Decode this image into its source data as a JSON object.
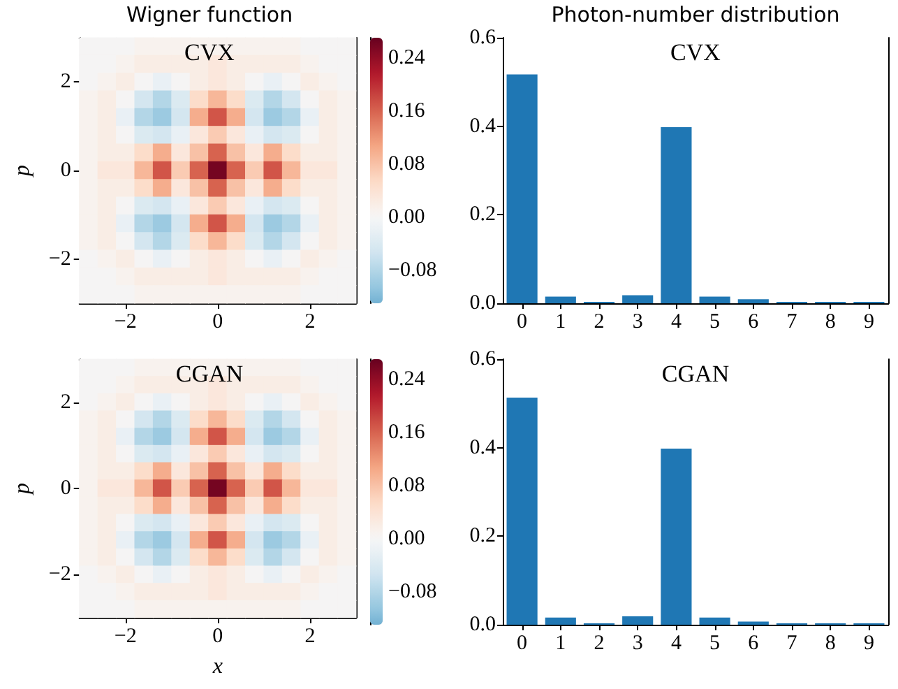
{
  "chart_data": [
    {
      "type": "heatmap",
      "title": "Wigner function",
      "ylabel": "p",
      "annotations": [
        "CVX"
      ],
      "categories": [
        null,
        null,
        "−2",
        null,
        null,
        null,
        null,
        "0",
        null,
        null,
        null,
        null,
        "2",
        null,
        null
      ],
      "y_categories": [
        null,
        null,
        "2",
        null,
        null,
        null,
        null,
        "0",
        null,
        null,
        null,
        null,
        "−2",
        null,
        null
      ],
      "clim": [
        -0.13,
        0.27
      ],
      "cticks": [
        {
          "value": -0.08,
          "label": "−0.08"
        },
        {
          "value": 0,
          "label": "0.00"
        },
        {
          "value": 0.08,
          "label": "0.08"
        },
        {
          "value": 0.16,
          "label": "0.16"
        },
        {
          "value": 0.24,
          "label": "0.24"
        }
      ],
      "cells": [
        [
          0,
          0,
          0,
          0.01,
          0.01,
          0.01,
          0.01,
          0.01,
          0.01,
          0.01,
          0.01,
          0.01,
          0,
          0,
          0
        ],
        [
          0,
          0,
          0.01,
          0.02,
          0.02,
          0.02,
          0.02,
          0.03,
          0.02,
          0.02,
          0.02,
          0.02,
          0.01,
          0,
          0
        ],
        [
          0,
          0.01,
          0.02,
          0,
          -0.02,
          0,
          0.02,
          0.03,
          0.02,
          0,
          -0.02,
          0,
          0.02,
          0.01,
          0
        ],
        [
          0.01,
          0.02,
          0,
          -0.05,
          -0.08,
          -0.04,
          0.05,
          0.09,
          0.05,
          -0.04,
          -0.08,
          -0.05,
          0,
          0.02,
          0.01
        ],
        [
          0.01,
          0.02,
          -0.02,
          -0.08,
          -0.1,
          -0.05,
          0.1,
          0.17,
          0.1,
          -0.05,
          -0.1,
          -0.08,
          -0.02,
          0.02,
          0.01
        ],
        [
          0.01,
          0.02,
          0,
          -0.04,
          -0.05,
          -0.02,
          0.03,
          0.07,
          0.03,
          -0.02,
          -0.05,
          -0.04,
          0,
          0.02,
          0.01
        ],
        [
          0.01,
          0.02,
          0.02,
          0.05,
          0.1,
          0.03,
          0.08,
          0.16,
          0.08,
          0.03,
          0.1,
          0.05,
          0.02,
          0.02,
          0.01
        ],
        [
          0.01,
          0.03,
          0.03,
          0.09,
          0.17,
          0.07,
          0.16,
          0.26,
          0.16,
          0.07,
          0.17,
          0.09,
          0.03,
          0.03,
          0.01
        ],
        [
          0.01,
          0.02,
          0.02,
          0.05,
          0.1,
          0.03,
          0.08,
          0.16,
          0.08,
          0.03,
          0.1,
          0.05,
          0.02,
          0.02,
          0.01
        ],
        [
          0.01,
          0.02,
          0,
          -0.04,
          -0.05,
          -0.02,
          0.03,
          0.07,
          0.03,
          -0.02,
          -0.05,
          -0.04,
          0,
          0.02,
          0.01
        ],
        [
          0.01,
          0.02,
          -0.02,
          -0.08,
          -0.1,
          -0.05,
          0.1,
          0.17,
          0.1,
          -0.05,
          -0.1,
          -0.08,
          -0.02,
          0.02,
          0.01
        ],
        [
          0.01,
          0.02,
          0,
          -0.05,
          -0.08,
          -0.04,
          0.05,
          0.09,
          0.05,
          -0.04,
          -0.08,
          -0.05,
          0,
          0.02,
          0.01
        ],
        [
          0,
          0.01,
          0.02,
          0,
          -0.02,
          0,
          0.02,
          0.03,
          0.02,
          0,
          -0.02,
          0,
          0.02,
          0.01,
          0
        ],
        [
          0,
          0,
          0.01,
          0.02,
          0.02,
          0.02,
          0.02,
          0.03,
          0.02,
          0.02,
          0.02,
          0.02,
          0.01,
          0,
          0
        ],
        [
          0,
          0,
          0,
          0.01,
          0.01,
          0.01,
          0.01,
          0.01,
          0.01,
          0.01,
          0.01,
          0.01,
          0,
          0,
          0
        ]
      ]
    },
    {
      "type": "bar",
      "title": "Photon-number distribution",
      "annotations": [
        "CVX"
      ],
      "categories": [
        "0",
        "1",
        "2",
        "3",
        "4",
        "5",
        "6",
        "7",
        "8",
        "9"
      ],
      "values": [
        0.517,
        0.015,
        0.003,
        0.018,
        0.398,
        0.015,
        0.009,
        0.003,
        0.003,
        0.003
      ],
      "color": "#1f77b4",
      "ylim": [
        0,
        0.6
      ],
      "yticks": [
        {
          "value": 0,
          "label": "0.0"
        },
        {
          "value": 0.2,
          "label": "0.2"
        },
        {
          "value": 0.4,
          "label": "0.4"
        },
        {
          "value": 0.6,
          "label": "0.6"
        }
      ]
    },
    {
      "type": "heatmap",
      "xlabel": "x",
      "ylabel": "p",
      "annotations": [
        "CGAN"
      ],
      "categories": [
        null,
        null,
        "−2",
        null,
        null,
        null,
        null,
        "0",
        null,
        null,
        null,
        null,
        "2",
        null,
        null
      ],
      "y_categories": [
        null,
        null,
        "2",
        null,
        null,
        null,
        null,
        "0",
        null,
        null,
        null,
        null,
        "−2",
        null,
        null
      ],
      "clim": [
        -0.13,
        0.27
      ],
      "cticks": [
        {
          "value": -0.08,
          "label": "−0.08"
        },
        {
          "value": 0,
          "label": "0.00"
        },
        {
          "value": 0.08,
          "label": "0.08"
        },
        {
          "value": 0.16,
          "label": "0.16"
        },
        {
          "value": 0.24,
          "label": "0.24"
        }
      ],
      "cells": [
        [
          0,
          0,
          0,
          0.01,
          0.01,
          0.01,
          0.01,
          0.01,
          0.01,
          0.01,
          0.01,
          0.01,
          0,
          0,
          0
        ],
        [
          0,
          0,
          0.01,
          0.02,
          0.02,
          0.02,
          0.02,
          0.03,
          0.02,
          0.02,
          0.02,
          0.02,
          0.01,
          0,
          0
        ],
        [
          0,
          0.01,
          0.02,
          0,
          -0.02,
          0,
          0.02,
          0.03,
          0.02,
          0,
          -0.02,
          0,
          0.02,
          0.01,
          0
        ],
        [
          0.01,
          0.02,
          0,
          -0.05,
          -0.08,
          -0.04,
          0.05,
          0.09,
          0.05,
          -0.04,
          -0.08,
          -0.05,
          0,
          0.02,
          0.01
        ],
        [
          0.01,
          0.02,
          -0.02,
          -0.08,
          -0.1,
          -0.05,
          0.1,
          0.17,
          0.1,
          -0.05,
          -0.1,
          -0.08,
          -0.02,
          0.02,
          0.01
        ],
        [
          0.01,
          0.02,
          0,
          -0.04,
          -0.05,
          -0.02,
          0.03,
          0.07,
          0.03,
          -0.02,
          -0.05,
          -0.04,
          0,
          0.02,
          0.01
        ],
        [
          0.01,
          0.02,
          0.02,
          0.05,
          0.1,
          0.03,
          0.08,
          0.16,
          0.08,
          0.03,
          0.1,
          0.05,
          0.02,
          0.02,
          0.01
        ],
        [
          0.01,
          0.03,
          0.03,
          0.09,
          0.17,
          0.07,
          0.16,
          0.26,
          0.16,
          0.07,
          0.17,
          0.09,
          0.03,
          0.03,
          0.01
        ],
        [
          0.01,
          0.02,
          0.02,
          0.05,
          0.1,
          0.03,
          0.08,
          0.16,
          0.08,
          0.03,
          0.1,
          0.05,
          0.02,
          0.02,
          0.01
        ],
        [
          0.01,
          0.02,
          0,
          -0.04,
          -0.05,
          -0.02,
          0.03,
          0.07,
          0.03,
          -0.02,
          -0.05,
          -0.04,
          0,
          0.02,
          0.01
        ],
        [
          0.01,
          0.02,
          -0.02,
          -0.08,
          -0.1,
          -0.05,
          0.1,
          0.17,
          0.1,
          -0.05,
          -0.1,
          -0.08,
          -0.02,
          0.02,
          0.01
        ],
        [
          0.01,
          0.02,
          0,
          -0.05,
          -0.08,
          -0.04,
          0.05,
          0.09,
          0.05,
          -0.04,
          -0.08,
          -0.05,
          0,
          0.02,
          0.01
        ],
        [
          0,
          0.01,
          0.02,
          0,
          -0.02,
          0,
          0.02,
          0.03,
          0.02,
          0,
          -0.02,
          0,
          0.02,
          0.01,
          0
        ],
        [
          0,
          0,
          0.01,
          0.02,
          0.02,
          0.02,
          0.02,
          0.03,
          0.02,
          0.02,
          0.02,
          0.02,
          0.01,
          0,
          0
        ],
        [
          0,
          0,
          0,
          0.01,
          0.01,
          0.01,
          0.01,
          0.01,
          0.01,
          0.01,
          0.01,
          0.01,
          0,
          0,
          0
        ]
      ]
    },
    {
      "type": "bar",
      "annotations": [
        "CGAN"
      ],
      "categories": [
        "0",
        "1",
        "2",
        "3",
        "4",
        "5",
        "6",
        "7",
        "8",
        "9"
      ],
      "values": [
        0.513,
        0.016,
        0.003,
        0.019,
        0.398,
        0.016,
        0.007,
        0.003,
        0.003,
        0.003
      ],
      "color": "#1f77b4",
      "ylim": [
        0,
        0.6
      ],
      "yticks": [
        {
          "value": 0,
          "label": "0.0"
        },
        {
          "value": 0.2,
          "label": "0.2"
        },
        {
          "value": 0.4,
          "label": "0.4"
        },
        {
          "value": 0.6,
          "label": "0.6"
        }
      ]
    }
  ]
}
